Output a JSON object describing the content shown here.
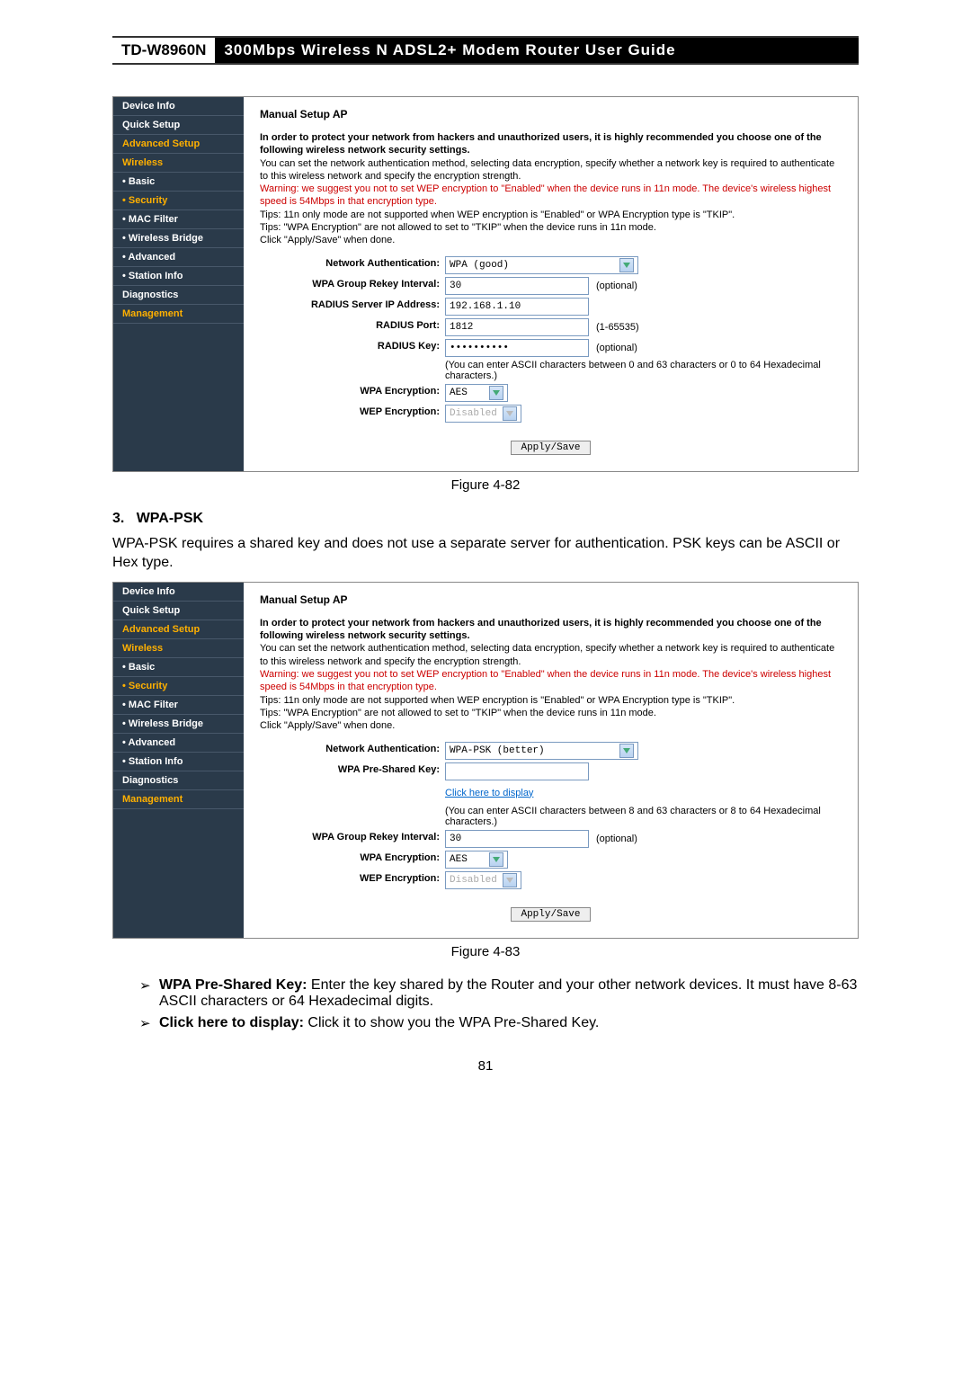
{
  "header": {
    "model": "TD-W8960N",
    "title": "300Mbps  Wireless  N  ADSL2+  Modem  Router  User  Guide"
  },
  "sidebar": {
    "items": [
      {
        "label": "Device Info",
        "selected": false,
        "bullet": false
      },
      {
        "label": "Quick Setup",
        "selected": false,
        "bullet": false
      },
      {
        "label": "Advanced Setup",
        "selected": true,
        "bullet": false
      },
      {
        "label": "Wireless",
        "selected": true,
        "bullet": false
      },
      {
        "label": "Basic",
        "selected": false,
        "bullet": true
      },
      {
        "label": "Security",
        "selected": true,
        "bullet": true
      },
      {
        "label": "MAC Filter",
        "selected": false,
        "bullet": true
      },
      {
        "label": "Wireless Bridge",
        "selected": false,
        "bullet": true
      },
      {
        "label": "Advanced",
        "selected": false,
        "bullet": true
      },
      {
        "label": "Station Info",
        "selected": false,
        "bullet": true
      },
      {
        "label": "Diagnostics",
        "selected": false,
        "bullet": false
      },
      {
        "label": "Management",
        "selected": true,
        "bullet": false
      }
    ]
  },
  "panel1": {
    "title": "Manual Setup AP",
    "intro_bold": "In order to protect your network from hackers and unauthorized users, it is highly recommended you choose one of the following wireless network security settings.",
    "intro_para": "You can set the network authentication method, selecting data encryption, specify whether a network key is required to authenticate to this wireless network and specify the encryption strength.",
    "warning": "Warning: we suggest you not to set WEP encryption to \"Enabled\" when the device runs in 11n mode. The device's wireless highest speed is 54Mbps in that encryption type.",
    "tips1": "Tips: 11n only mode are not supported when WEP encryption is \"Enabled\" or WPA Encryption type is \"TKIP\".",
    "tips2": "Tips: \"WPA Encryption\" are not allowed to set to \"TKIP\" when the device runs in 11n mode.",
    "click_save": "Click \"Apply/Save\" when done.",
    "fields": {
      "net_auth_label": "Network Authentication:",
      "net_auth_value": "WPA (good)",
      "rekey_label": "WPA Group Rekey Interval:",
      "rekey_value": "30",
      "rekey_note": "(optional)",
      "radius_ip_label": "RADIUS Server IP Address:",
      "radius_ip_value": "192.168.1.10",
      "radius_port_label": "RADIUS Port:",
      "radius_port_value": "1812",
      "radius_port_note": "(1-65535)",
      "radius_key_label": "RADIUS Key:",
      "radius_key_value": "••••••••••",
      "radius_key_note": "(optional)",
      "key_hint": "(You can enter ASCII characters between 0 and 63 characters or 0 to 64 Hexadecimal characters.)",
      "wpa_enc_label": "WPA Encryption:",
      "wpa_enc_value": "AES",
      "wep_enc_label": "WEP Encryption:",
      "wep_enc_value": "Disabled"
    },
    "apply": "Apply/Save",
    "caption": "Figure 4-82"
  },
  "section": {
    "num": "3.",
    "heading": "WPA-PSK",
    "para": "WPA-PSK requires a shared key and does not use a separate server for authentication. PSK keys can be ASCII or Hex type."
  },
  "panel2": {
    "title": "Manual Setup AP",
    "intro_bold": "In order to protect your network from hackers and unauthorized users, it is highly recommended you choose one of the following wireless network security settings.",
    "intro_para": "You can set the network authentication method, selecting data encryption, specify whether a network key is required to authenticate to this wireless network and specify the encryption strength.",
    "warning": "Warning: we suggest you not to set WEP encryption to \"Enabled\" when the device runs in 11n mode. The device's wireless highest speed is 54Mbps in that encryption type.",
    "tips1": "Tips: 11n only mode are not supported when WEP encryption is \"Enabled\" or WPA Encryption type is \"TKIP\".",
    "tips2": "Tips: \"WPA Encryption\" are not allowed to set to \"TKIP\" when the device runs in 11n mode.",
    "click_save": "Click \"Apply/Save\" when done.",
    "fields": {
      "net_auth_label": "Network Authentication:",
      "net_auth_value": "WPA-PSK (better)",
      "psk_label": "WPA Pre-Shared Key:",
      "psk_value": "",
      "display_link": "Click here to display",
      "psk_hint": "(You can enter ASCII characters between 8 and 63 characters or 8 to 64 Hexadecimal characters.)",
      "rekey_label": "WPA Group Rekey Interval:",
      "rekey_value": "30",
      "rekey_note": "(optional)",
      "wpa_enc_label": "WPA Encryption:",
      "wpa_enc_value": "AES",
      "wep_enc_label": "WEP Encryption:",
      "wep_enc_value": "Disabled"
    },
    "apply": "Apply/Save",
    "caption": "Figure 4-83"
  },
  "bullets": {
    "b1_strong": "WPA Pre-Shared Key:",
    "b1_text": " Enter the key shared by the Router and your other network devices. It must have 8-63 ASCII characters or 64 Hexadecimal digits.",
    "b2_strong": "Click here to display:",
    "b2_text": " Click it to show you the WPA Pre-Shared Key."
  },
  "page_number": "81",
  "colors": {
    "sidebar_bg": "#2a3a4a",
    "selected": "#ffb000",
    "warn": "#c00",
    "link": "#06c"
  }
}
